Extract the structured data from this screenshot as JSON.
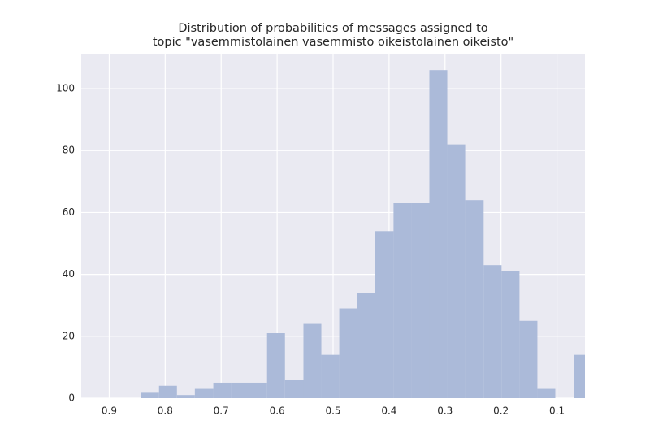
{
  "chart_data": {
    "type": "histogram",
    "title": [
      "Distribution of probabilities of messages assigned to",
      "topic \"vasemmistolainen vasemmisto oikeistolainen oikeisto\""
    ],
    "bins": [
      0.843,
      0.811,
      0.779,
      0.747,
      0.714,
      0.682,
      0.65,
      0.618,
      0.586,
      0.553,
      0.521,
      0.489,
      0.457,
      0.425,
      0.392,
      0.36,
      0.328,
      0.296,
      0.264,
      0.231,
      0.199,
      0.167,
      0.135,
      0.103,
      0.07,
      0.038
    ],
    "values": [
      2,
      4,
      1,
      3,
      5,
      5,
      5,
      21,
      6,
      24,
      14,
      29,
      34,
      54,
      63,
      63,
      106,
      82,
      64,
      43,
      41,
      25,
      3,
      0,
      14
    ],
    "color": "#abbad9",
    "xlim": [
      0.95,
      0.05
    ],
    "xticks": [
      0.9,
      0.8,
      0.7,
      0.6,
      0.5,
      0.4,
      0.3,
      0.2,
      0.1
    ],
    "ylim": [
      0,
      111.3
    ],
    "yticks": [
      0,
      20,
      40,
      60,
      80,
      100
    ],
    "grid": true
  }
}
